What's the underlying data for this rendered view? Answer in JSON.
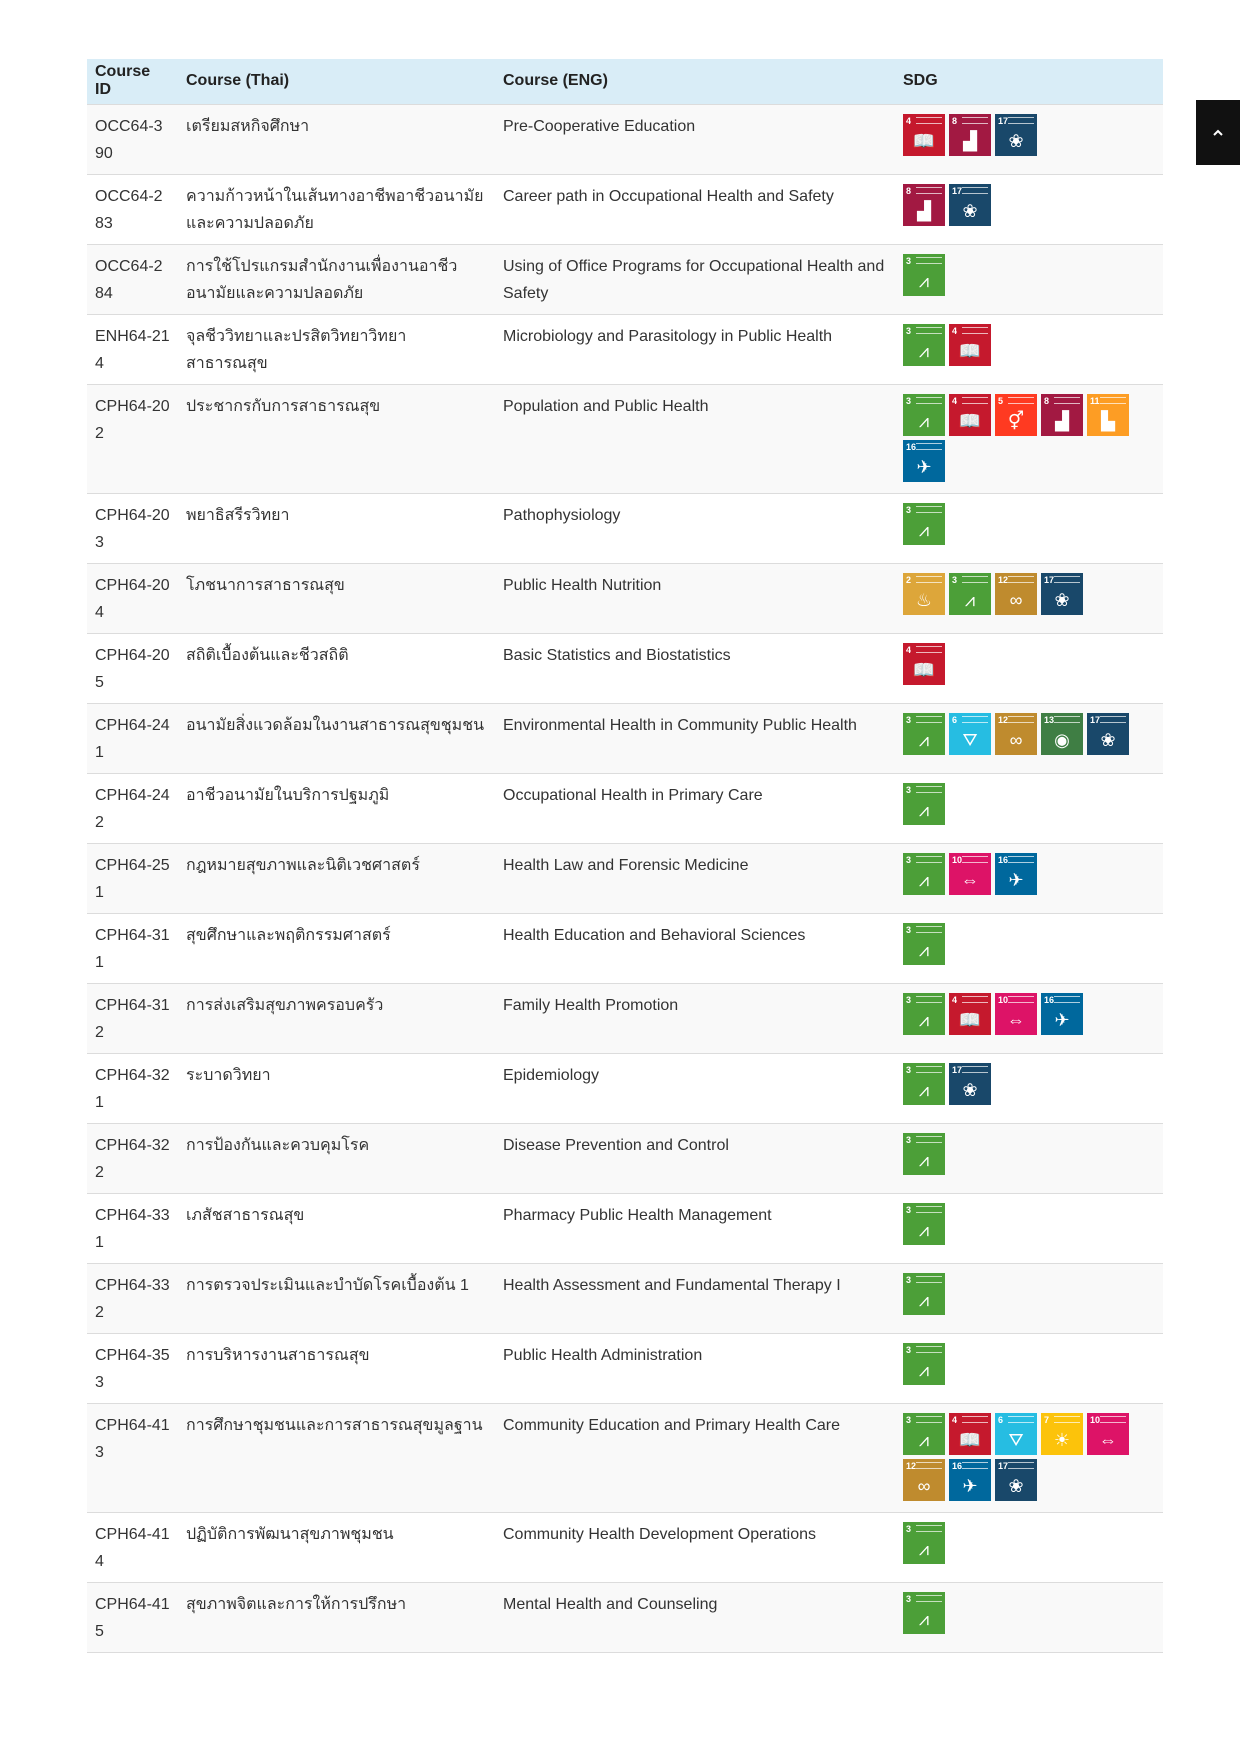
{
  "headers": {
    "course_id": "Course ID",
    "course_thai": "Course (Thai)",
    "course_eng": "Course (ENG)",
    "sdg": "SDG"
  },
  "sdg_colors": {
    "2": "#dda63a",
    "3": "#4c9f38",
    "4": "#c5192d",
    "5": "#ff3a21",
    "6": "#26bde2",
    "7": "#fcc30b",
    "8": "#a21942",
    "10": "#dd1367",
    "11": "#fd9d24",
    "12": "#bf8b2e",
    "13": "#3f7e44",
    "16": "#00689d",
    "17": "#19486a"
  },
  "sdg_icons": {
    "2": "bowl-icon",
    "3": "heartbeat-icon",
    "4": "book-icon",
    "5": "gender-icon",
    "6": "water-icon",
    "7": "sun-icon",
    "8": "growth-chart-icon",
    "10": "equality-icon",
    "11": "city-icon",
    "12": "infinity-icon",
    "13": "eye-globe-icon",
    "16": "dove-icon",
    "17": "flower-icon"
  },
  "sdg_glyphs": {
    "2": "♨",
    "3": "⩘",
    "4": "📖",
    "5": "⚥",
    "6": "⛛",
    "7": "☀",
    "8": "▟",
    "10": "⇔",
    "11": "▙",
    "12": "∞",
    "13": "◉",
    "16": "✈",
    "17": "❀"
  },
  "rows": [
    {
      "id": "OCC64-390",
      "thai": "เตรียมสหกิจศึกษา",
      "eng": "Pre-Cooperative Education",
      "sdg": [
        "4",
        "8",
        "17"
      ]
    },
    {
      "id": "OCC64-283",
      "thai": "ความก้าวหน้าในเส้นทางอาชีพอาชีวอนามัยและความปลอดภัย",
      "eng": "Career path in Occupational Health and Safety",
      "sdg": [
        "8",
        "17"
      ]
    },
    {
      "id": "OCC64-284",
      "thai": "การใช้โปรแกรมสำนักงานเพื่องานอาชีวอนามัยและความปลอดภัย",
      "eng": "Using of Office Programs for Occupational Health and Safety",
      "sdg": [
        "3"
      ]
    },
    {
      "id": "ENH64-214",
      "thai": "จุลชีววิทยาและปรสิตวิทยาวิทยาสาธารณสุข",
      "eng": "Microbiology and Parasitology in Public Health",
      "sdg": [
        "3",
        "4"
      ]
    },
    {
      "id": "CPH64-202",
      "thai": "ประชากรกับการสาธารณสุข",
      "eng": "Population and Public Health",
      "sdg": [
        "3",
        "4",
        "5",
        "8",
        "11",
        "16"
      ]
    },
    {
      "id": "CPH64-203",
      "thai": "พยาธิสรีรวิทยา",
      "eng": "Pathophysiology",
      "sdg": [
        "3"
      ]
    },
    {
      "id": "CPH64-204",
      "thai": "โภชนาการสาธารณสุข",
      "eng": "Public Health Nutrition",
      "sdg": [
        "2",
        "3",
        "12",
        "17"
      ]
    },
    {
      "id": "CPH64-205",
      "thai": "สถิติเบื้องต้นและชีวสถิติ",
      "eng": "Basic Statistics and Biostatistics",
      "sdg": [
        "4"
      ]
    },
    {
      "id": "CPH64-241",
      "thai": "อนามัยสิ่งแวดล้อมในงานสาธารณสุขชุมชน",
      "eng": "Environmental Health in Community Public Health",
      "sdg": [
        "3",
        "6",
        "12",
        "13",
        "17"
      ]
    },
    {
      "id": "CPH64-242",
      "thai": "อาชีวอนามัยในบริการปฐมภูมิ",
      "eng": "Occupational Health in Primary Care",
      "sdg": [
        "3"
      ]
    },
    {
      "id": "CPH64-251",
      "thai": "กฎหมายสุขภาพและนิติเวชศาสตร์",
      "eng": "Health Law and Forensic Medicine",
      "sdg": [
        "3",
        "10",
        "16"
      ]
    },
    {
      "id": "CPH64-311",
      "thai": "สุขศึกษาและพฤติกรรมศาสตร์",
      "eng": "Health Education and Behavioral Sciences",
      "sdg": [
        "3"
      ]
    },
    {
      "id": "CPH64-312",
      "thai": "การส่งเสริมสุขภาพครอบครัว",
      "eng": "Family Health Promotion",
      "sdg": [
        "3",
        "4",
        "10",
        "16"
      ]
    },
    {
      "id": "CPH64-321",
      "thai": "ระบาดวิทยา",
      "eng": "Epidemiology",
      "sdg": [
        "3",
        "17"
      ]
    },
    {
      "id": "CPH64-322",
      "thai": "การป้องกันและควบคุมโรค",
      "eng": "Disease Prevention and Control",
      "sdg": [
        "3"
      ]
    },
    {
      "id": "CPH64-331",
      "thai": "เภสัชสาธารณสุข",
      "eng": "Pharmacy Public Health Management",
      "sdg": [
        "3"
      ]
    },
    {
      "id": "CPH64-332",
      "thai": "การตรวจประเมินและบำบัดโรคเบื้องต้น 1",
      "eng": "Health Assessment and Fundamental Therapy I",
      "sdg": [
        "3"
      ]
    },
    {
      "id": "CPH64-353",
      "thai": "การบริหารงานสาธารณสุข",
      "eng": "Public Health Administration",
      "sdg": [
        "3"
      ]
    },
    {
      "id": "CPH64-413",
      "thai": "การศึกษาชุมชนและการสาธารณสุขมูลฐาน",
      "eng": "Community Education and Primary Health Care",
      "sdg": [
        "3",
        "4",
        "6",
        "7",
        "10",
        "12",
        "16",
        "17"
      ]
    },
    {
      "id": "CPH64-414",
      "thai": "ปฏิบัติการพัฒนาสุขภาพชุมชน",
      "eng": "Community Health Development Operations",
      "sdg": [
        "3"
      ]
    },
    {
      "id": "CPH64-415",
      "thai": "สุขภาพจิตและการให้การปรึกษา",
      "eng": "Mental Health and Counseling",
      "sdg": [
        "3"
      ]
    }
  ]
}
